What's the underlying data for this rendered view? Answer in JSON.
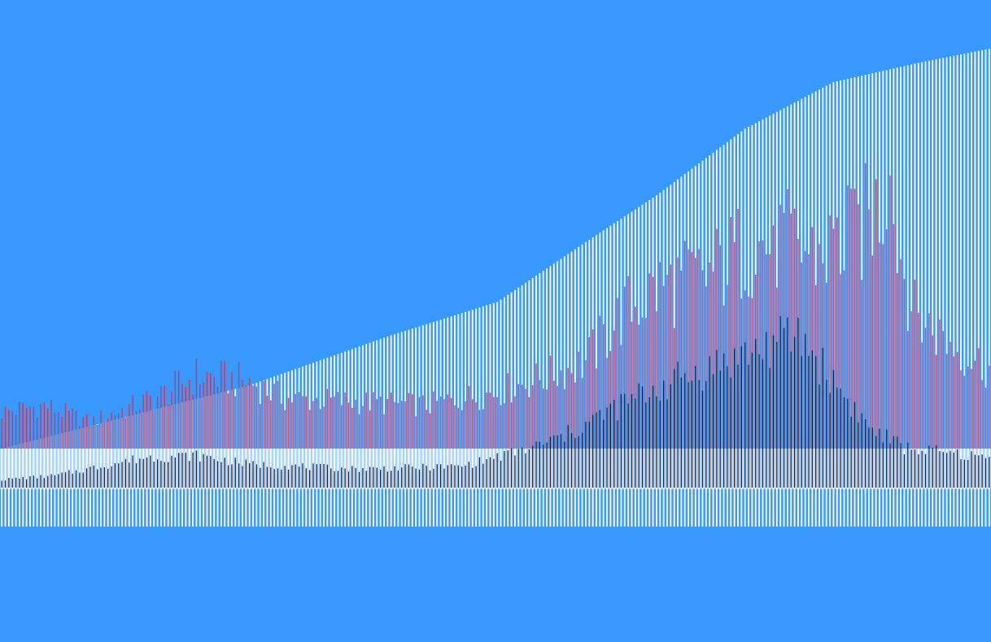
{
  "chart_data": {
    "type": "bar",
    "title": "",
    "xlabel": "",
    "ylabel": "",
    "grid": false,
    "legend": "none",
    "bar_count": 280,
    "colors": {
      "background": "#3a99ff",
      "cumulative": "#ffffff",
      "band_light": "#a8d4ff",
      "red_series": "#e0283c",
      "black_series": "#1a0a0a"
    },
    "series": [
      {
        "role": "cumulative-white",
        "keyframes": [
          [
            0,
            0
          ],
          [
            70,
            95
          ],
          [
            110,
            170
          ],
          [
            140,
            220
          ],
          [
            165,
            310
          ],
          [
            185,
            380
          ],
          [
            210,
            480
          ],
          [
            235,
            550
          ],
          [
            260,
            580
          ],
          [
            279,
            600
          ]
        ]
      },
      {
        "role": "red-upper",
        "keyframes": [
          [
            0,
            55
          ],
          [
            12,
            65
          ],
          [
            25,
            40
          ],
          [
            45,
            80
          ],
          [
            55,
            110
          ],
          [
            70,
            100
          ],
          [
            80,
            75
          ],
          [
            100,
            70
          ],
          [
            120,
            65
          ],
          [
            140,
            85
          ],
          [
            155,
            110
          ],
          [
            165,
            130
          ],
          [
            175,
            200
          ],
          [
            185,
            240
          ],
          [
            200,
            260
          ],
          [
            210,
            300
          ],
          [
            220,
            310
          ],
          [
            230,
            290
          ],
          [
            240,
            310
          ],
          [
            250,
            380
          ],
          [
            258,
            200
          ],
          [
            270,
            150
          ],
          [
            279,
            120
          ]
        ],
        "spikes": [
          [
            239,
            395
          ],
          [
            251,
            410
          ],
          [
            235,
            330
          ],
          [
            218,
            335
          ]
        ]
      },
      {
        "role": "black-lower",
        "keyframes": [
          [
            0,
            12
          ],
          [
            15,
            18
          ],
          [
            40,
            45
          ],
          [
            55,
            48
          ],
          [
            70,
            35
          ],
          [
            100,
            28
          ],
          [
            130,
            32
          ],
          [
            150,
            60
          ],
          [
            160,
            80
          ],
          [
            170,
            110
          ],
          [
            185,
            150
          ],
          [
            200,
            180
          ],
          [
            215,
            210
          ],
          [
            225,
            230
          ],
          [
            235,
            160
          ],
          [
            245,
            90
          ],
          [
            255,
            60
          ],
          [
            270,
            50
          ],
          [
            279,
            45
          ]
        ]
      }
    ]
  }
}
